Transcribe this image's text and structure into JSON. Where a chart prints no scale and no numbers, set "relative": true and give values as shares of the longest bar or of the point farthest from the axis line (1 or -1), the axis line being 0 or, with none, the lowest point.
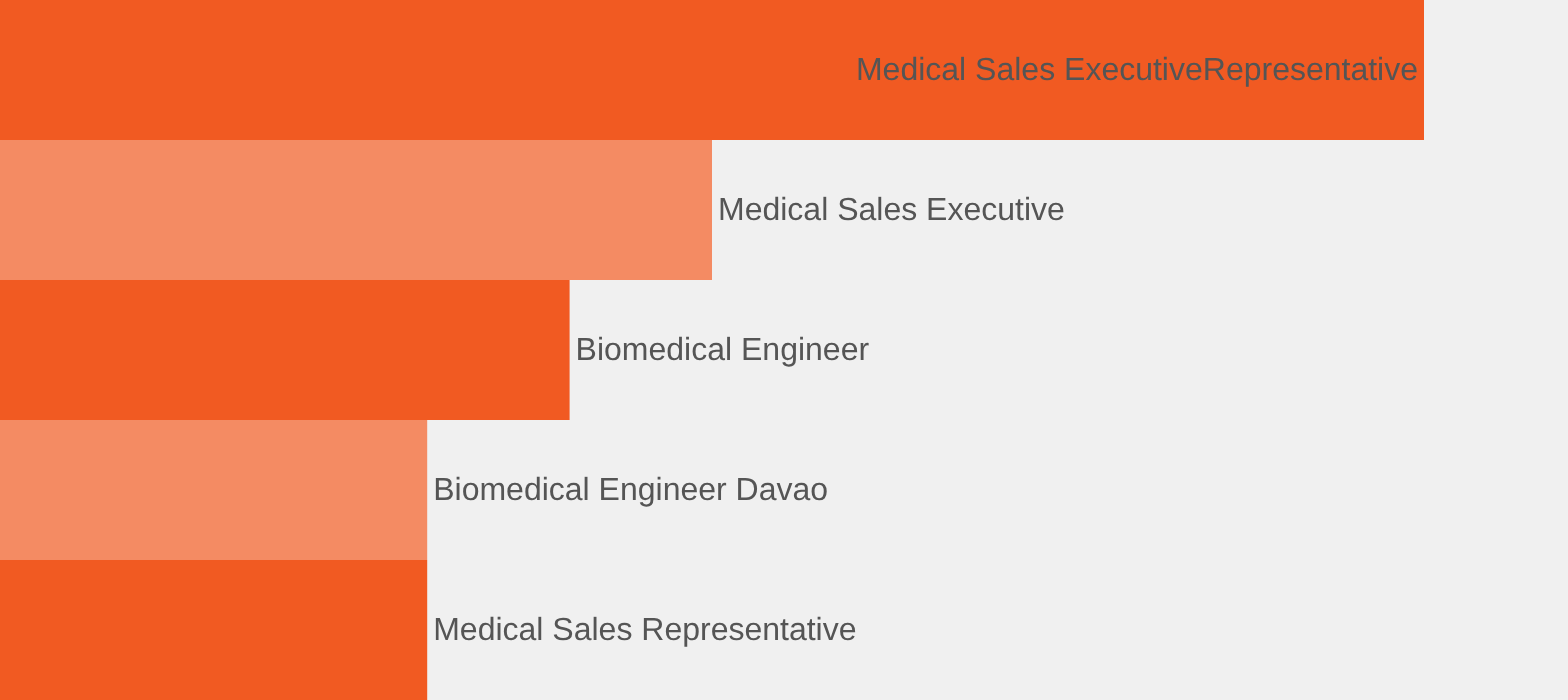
{
  "chart_data": {
    "type": "bar",
    "orientation": "horizontal",
    "relative": true,
    "categories": [
      "Medical Sales ExecutiveRepresentative",
      "Medical Sales Executive",
      "Biomedical Engineer",
      "Biomedical Engineer Davao",
      "Medical Sales Representative"
    ],
    "values": [
      1,
      0.5,
      0.4,
      0.3,
      0.3
    ],
    "colors": [
      "#f15a22",
      "#f48b63",
      "#f15a22",
      "#f48b63",
      "#f15a22"
    ]
  }
}
